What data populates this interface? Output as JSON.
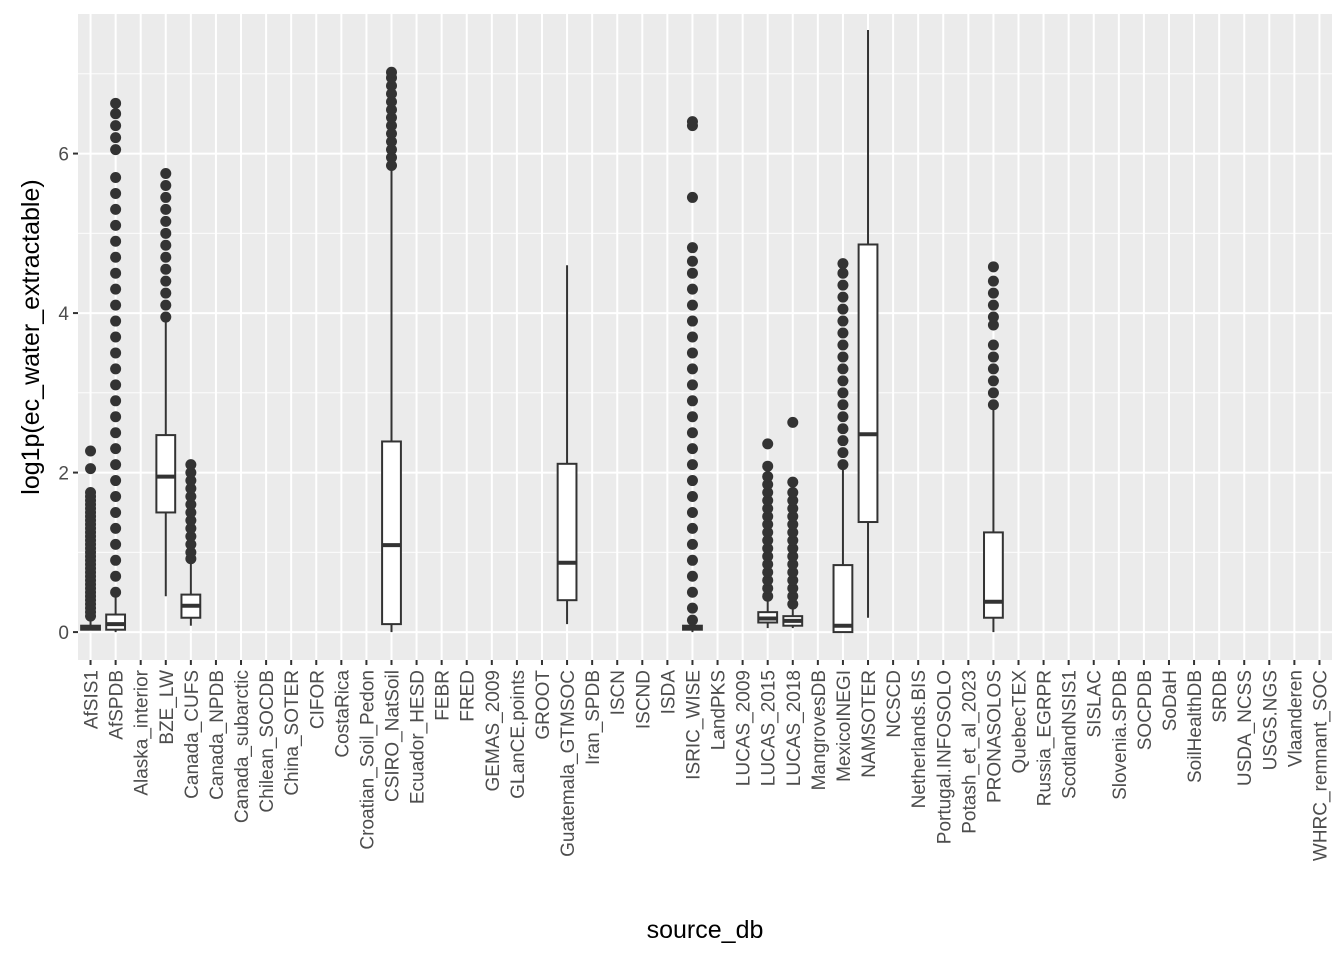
{
  "chart_data": {
    "type": "box",
    "title": "",
    "xlabel": "source_db",
    "ylabel": "log1p(ec_water_extractable)",
    "ylim": [
      -0.35,
      7.75
    ],
    "yticks": [
      0,
      2,
      4,
      6
    ],
    "ytick_labels": [
      "0",
      "2",
      "4",
      "6"
    ],
    "grid": true,
    "categories": [
      "AfSIS1",
      "AfSPDB",
      "Alaska_interior",
      "BZE_LW",
      "Canada_CUFS",
      "Canada_NPDB",
      "Canada_subarctic",
      "Chilean_SOCDB",
      "China_SOTER",
      "CIFOR",
      "CostaRica",
      "Croatian_Soil_Pedon",
      "CSIRO_NatSoil",
      "Ecuador_HESD",
      "FEBR",
      "FRED",
      "GEMAS_2009",
      "GLanCE.points",
      "GROOT",
      "Guatemala_GTMSOC",
      "Iran_SPDB",
      "ISCN",
      "ISCND",
      "ISDA",
      "ISRIC_WISE",
      "LandPKS",
      "LUCAS_2009",
      "LUCAS_2015",
      "LUCAS_2018",
      "MangrovesDB",
      "MexicoINEGI",
      "NAMSOTER",
      "NCSCD",
      "Netherlands.BIS",
      "Portugal.INFOSOLO",
      "Potash_et_al_2023",
      "PRONASOLOS",
      "QuebecTEX",
      "Russia_EGRPR",
      "ScotlandNSIS1",
      "SISLAC",
      "Slovenia.SPDB",
      "SOCPDB",
      "SoDaH",
      "SoilHealthDB",
      "SRDB",
      "USDA_NCSS",
      "USGS.NGS",
      "Vlaanderen",
      "WHRC_remnant_SOC"
    ],
    "boxes": [
      {
        "category": "AfSIS1",
        "min": 0.02,
        "q1": 0.03,
        "median": 0.06,
        "q3": 0.08,
        "max": 0.15,
        "outliers": [
          0.2,
          0.25,
          0.3,
          0.35,
          0.4,
          0.45,
          0.5,
          0.55,
          0.6,
          0.65,
          0.7,
          0.75,
          0.8,
          0.85,
          0.9,
          0.95,
          1.0,
          1.05,
          1.1,
          1.15,
          1.2,
          1.25,
          1.3,
          1.35,
          1.4,
          1.45,
          1.5,
          1.55,
          1.6,
          1.65,
          1.7,
          1.75,
          2.05,
          2.27
        ]
      },
      {
        "category": "AfSPDB",
        "min": 0.0,
        "q1": 0.03,
        "median": 0.1,
        "q3": 0.22,
        "max": 0.47,
        "outliers": [
          0.5,
          0.7,
          0.9,
          1.1,
          1.3,
          1.5,
          1.7,
          1.9,
          2.1,
          2.3,
          2.5,
          2.7,
          2.9,
          3.1,
          3.3,
          3.5,
          3.7,
          3.9,
          4.1,
          4.3,
          4.5,
          4.7,
          4.9,
          5.1,
          5.3,
          5.5,
          5.7,
          6.05,
          6.2,
          6.35,
          6.5,
          6.63
        ]
      },
      {
        "category": "BZE_LW",
        "min": 0.45,
        "q1": 1.5,
        "median": 1.95,
        "q3": 2.47,
        "max": 3.9,
        "outliers": [
          3.95,
          4.1,
          4.25,
          4.4,
          4.55,
          4.7,
          4.85,
          5.0,
          5.15,
          5.3,
          5.45,
          5.6,
          5.75
        ]
      },
      {
        "category": "Canada_CUFS",
        "min": 0.08,
        "q1": 0.18,
        "median": 0.33,
        "q3": 0.47,
        "max": 0.9,
        "outliers": [
          0.92,
          1.0,
          1.1,
          1.2,
          1.3,
          1.4,
          1.5,
          1.6,
          1.7,
          1.8,
          1.9,
          2.0,
          2.1
        ]
      },
      {
        "category": "CSIRO_NatSoil",
        "min": 0.0,
        "q1": 0.1,
        "median": 1.09,
        "q3": 2.39,
        "max": 5.8,
        "outliers": [
          5.85,
          5.95,
          6.05,
          6.15,
          6.25,
          6.35,
          6.45,
          6.55,
          6.65,
          6.75,
          6.85,
          6.95,
          7.02
        ]
      },
      {
        "category": "Guatemala_GTMSOC",
        "min": 0.1,
        "q1": 0.4,
        "median": 0.87,
        "q3": 2.11,
        "max": 4.6,
        "outliers": []
      },
      {
        "category": "ISRIC_WISE",
        "min": 0.0,
        "q1": 0.03,
        "median": 0.06,
        "q3": 0.08,
        "max": 0.1,
        "outliers": [
          0.15,
          0.3,
          0.5,
          0.7,
          0.9,
          1.1,
          1.3,
          1.5,
          1.7,
          1.9,
          2.1,
          2.3,
          2.5,
          2.7,
          2.9,
          3.1,
          3.3,
          3.5,
          3.7,
          3.9,
          4.1,
          4.3,
          4.5,
          4.65,
          4.82,
          5.45,
          6.35,
          6.4
        ]
      },
      {
        "category": "LUCAS_2015",
        "min": 0.05,
        "q1": 0.12,
        "median": 0.17,
        "q3": 0.25,
        "max": 0.4,
        "outliers": [
          0.45,
          0.55,
          0.65,
          0.75,
          0.85,
          0.95,
          1.05,
          1.15,
          1.25,
          1.35,
          1.45,
          1.55,
          1.65,
          1.75,
          1.85,
          1.95,
          2.08,
          2.36
        ]
      },
      {
        "category": "LUCAS_2018",
        "min": 0.05,
        "q1": 0.08,
        "median": 0.14,
        "q3": 0.2,
        "max": 0.3,
        "outliers": [
          0.35,
          0.45,
          0.55,
          0.65,
          0.75,
          0.85,
          0.95,
          1.05,
          1.15,
          1.25,
          1.35,
          1.45,
          1.55,
          1.65,
          1.75,
          1.88,
          2.63
        ]
      },
      {
        "category": "MexicoINEGI",
        "min": 0.0,
        "q1": 0.0,
        "median": 0.08,
        "q3": 0.84,
        "max": 2.05,
        "outliers": [
          2.1,
          2.25,
          2.4,
          2.55,
          2.7,
          2.85,
          3.0,
          3.15,
          3.3,
          3.45,
          3.6,
          3.75,
          3.9,
          4.05,
          4.2,
          4.35,
          4.5,
          4.62
        ]
      },
      {
        "category": "NAMSOTER",
        "min": 0.18,
        "q1": 1.38,
        "median": 2.48,
        "q3": 4.86,
        "max": 7.55,
        "outliers": []
      },
      {
        "category": "PRONASOLOS",
        "min": 0.0,
        "q1": 0.18,
        "median": 0.38,
        "q3": 1.25,
        "max": 2.8,
        "outliers": [
          2.85,
          3.0,
          3.15,
          3.3,
          3.45,
          3.6,
          3.85,
          3.95,
          4.1,
          4.25,
          4.4,
          4.58
        ]
      }
    ]
  }
}
